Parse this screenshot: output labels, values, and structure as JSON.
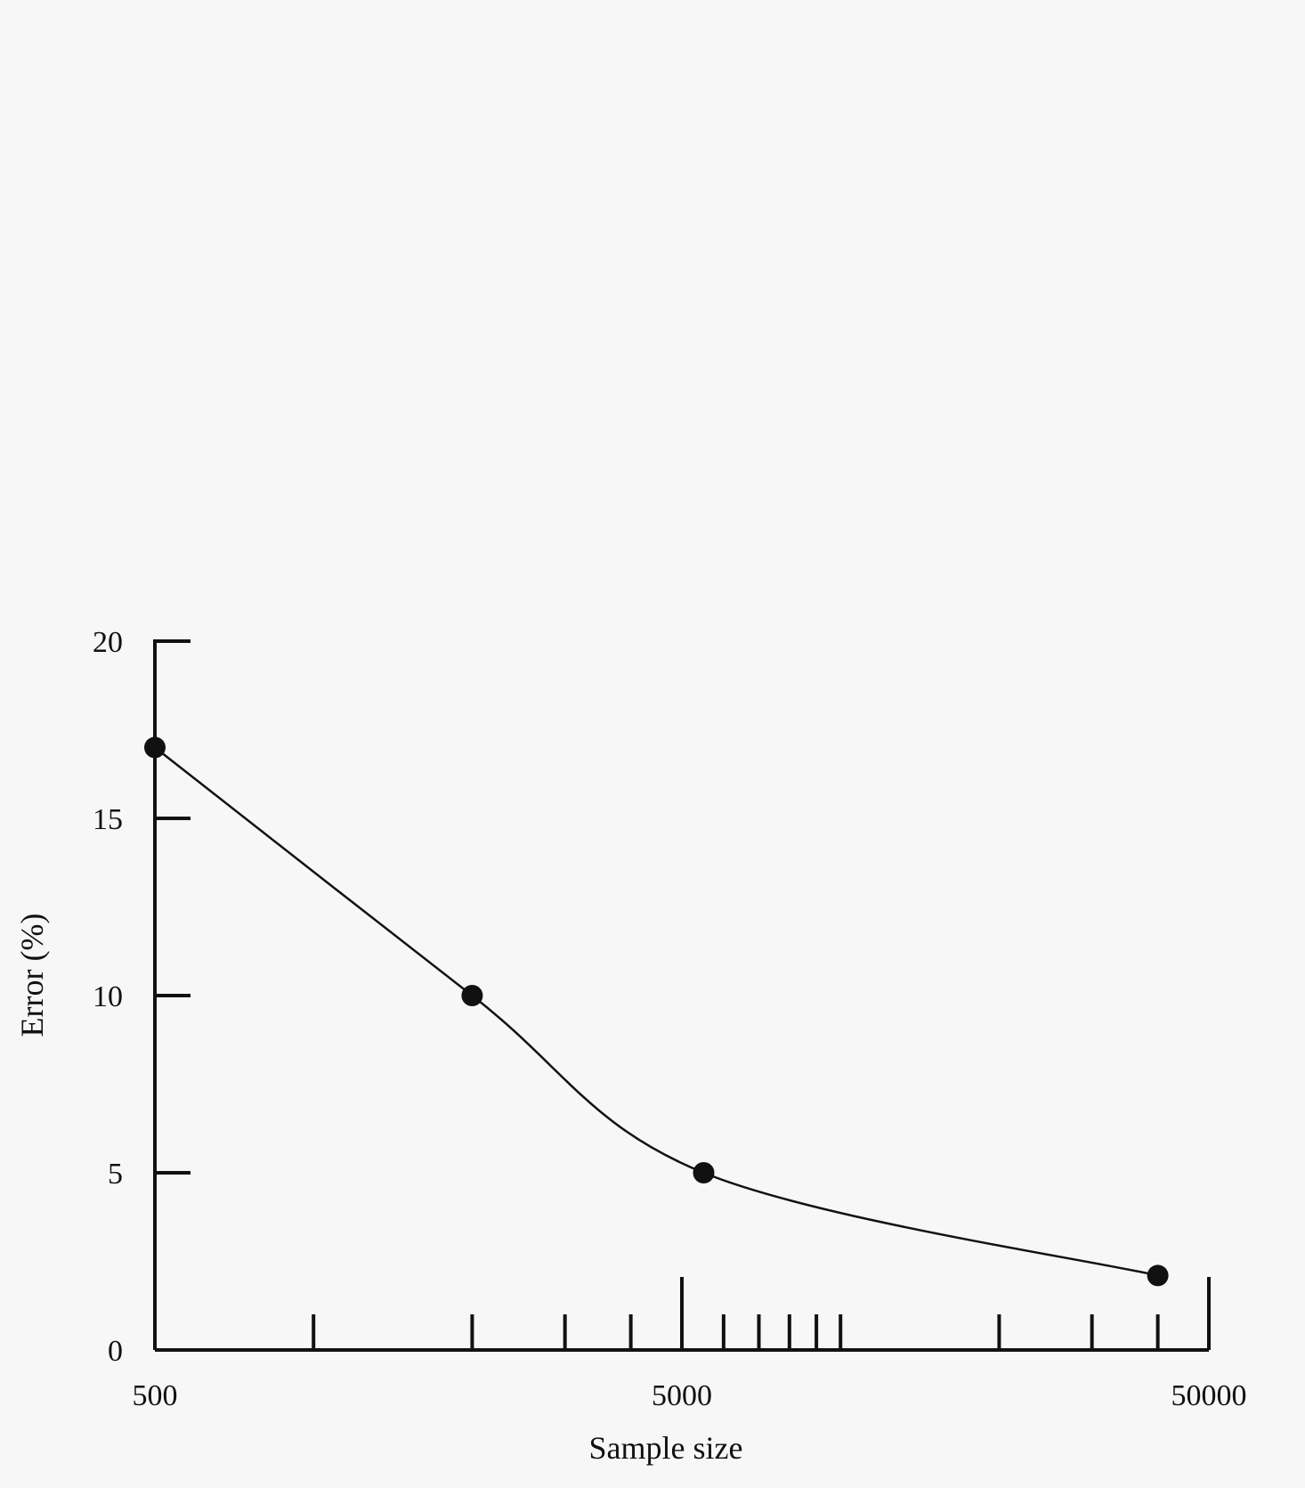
{
  "chart_data": {
    "type": "line",
    "title": "",
    "xlabel": "Sample size",
    "ylabel": "Error (%)",
    "x_scale": "log",
    "xlim": [
      500,
      50000
    ],
    "ylim": [
      0,
      20
    ],
    "x_ticks": [
      {
        "value": 500,
        "label": "500"
      },
      {
        "value": 5000,
        "label": "5000"
      },
      {
        "value": 50000,
        "label": "50000"
      }
    ],
    "y_ticks": [
      {
        "value": 0,
        "label": "0"
      },
      {
        "value": 5,
        "label": "5"
      },
      {
        "value": 10,
        "label": "10"
      },
      {
        "value": 15,
        "label": "15"
      },
      {
        "value": 20,
        "label": "20"
      }
    ],
    "x_minor_ticks": [
      1000,
      2000,
      3000,
      4000,
      6000,
      7000,
      8000,
      9000,
      10000,
      20000,
      30000,
      40000
    ],
    "x_major_ticks": [
      500,
      5000,
      50000
    ],
    "series": [
      {
        "x": [
          500,
          2000,
          5500,
          40000
        ],
        "y": [
          17,
          10,
          5,
          2.1
        ]
      }
    ],
    "grid": false,
    "legend": "none",
    "colors": {
      "line": "#111111",
      "marker": "#111111"
    }
  }
}
